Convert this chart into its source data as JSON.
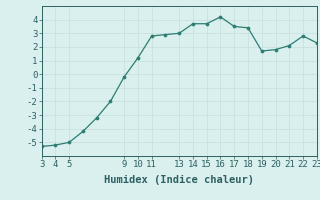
{
  "x": [
    3,
    4,
    5,
    6,
    7,
    8,
    9,
    10,
    11,
    12,
    13,
    14,
    15,
    16,
    17,
    18,
    19,
    20,
    21,
    22,
    23
  ],
  "y": [
    -5.3,
    -5.2,
    -5.0,
    -4.2,
    -3.2,
    -2.0,
    -0.2,
    1.2,
    2.8,
    2.9,
    3.0,
    3.7,
    3.7,
    4.2,
    3.5,
    3.4,
    1.7,
    1.8,
    2.1,
    2.8,
    2.3
  ],
  "line_color": "#2e7d72",
  "marker_color": "#2e7d72",
  "bg_color": "#d9f0ef",
  "grid_color": "#c8dedd",
  "xlabel": "Humidex (Indice chaleur)",
  "xlim": [
    3,
    23
  ],
  "ylim": [
    -6,
    5
  ],
  "yticks": [
    -5,
    -4,
    -3,
    -2,
    -1,
    0,
    1,
    2,
    3,
    4
  ],
  "xticks": [
    3,
    4,
    5,
    9,
    10,
    11,
    13,
    14,
    15,
    16,
    17,
    18,
    19,
    20,
    21,
    22,
    23
  ],
  "axis_fontsize": 6.5,
  "label_fontsize": 7.5
}
